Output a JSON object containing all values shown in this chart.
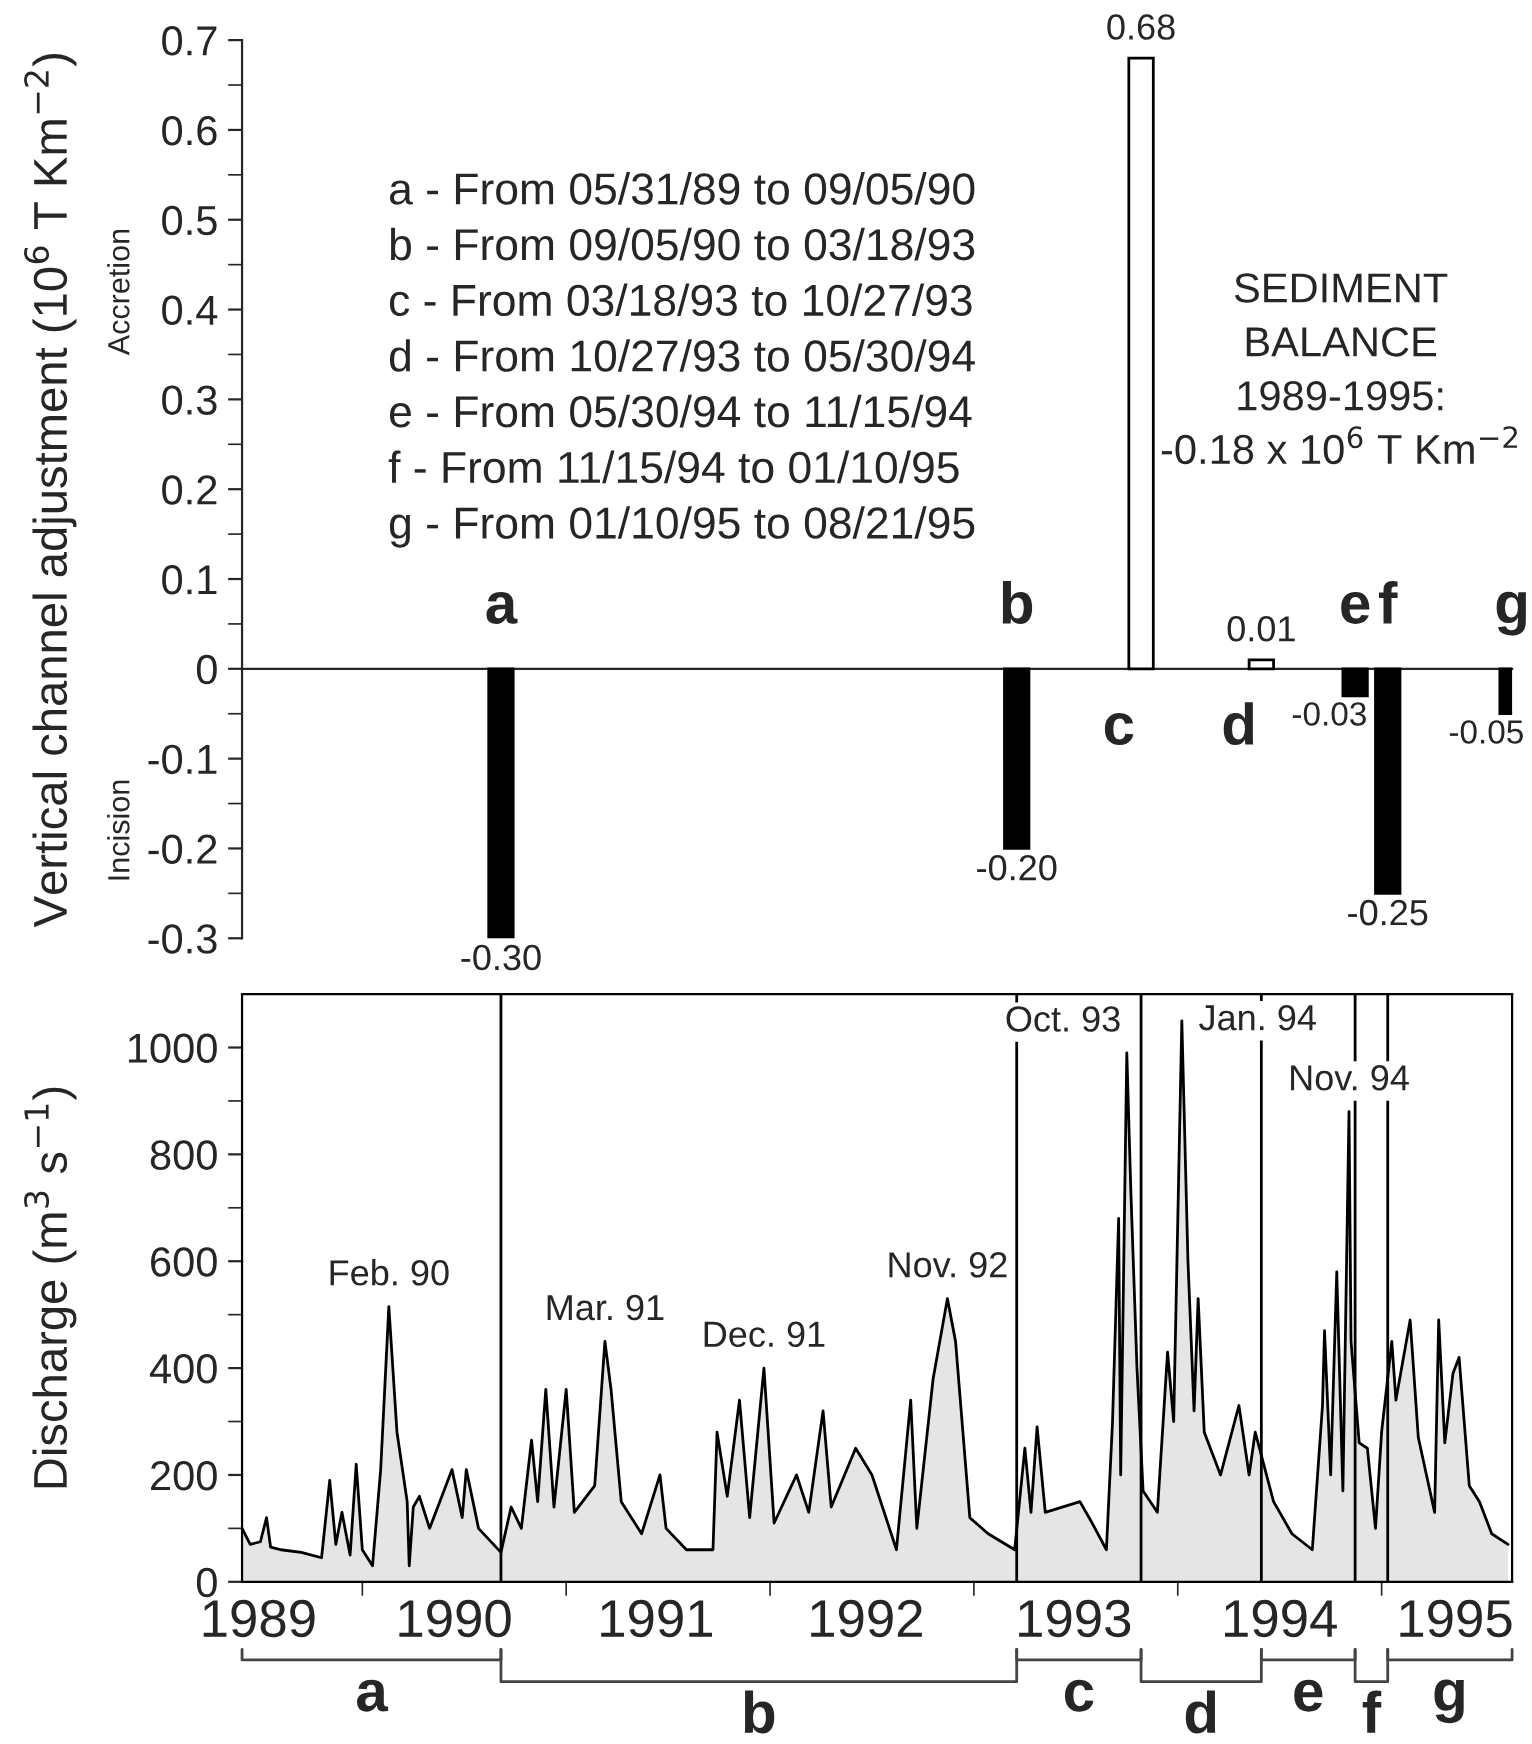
{
  "chart_data": [
    {
      "type": "bar",
      "ylabel": "Vertical channel adjustment (10$^{6}$ T Km$^{−2}$)",
      "x": [
        1990.68,
        1993.21,
        1993.82,
        1994.41,
        1994.87,
        1995.03,
        1995.64
      ],
      "values": [
        -0.3,
        -0.2,
        0.68,
        0.01,
        -0.03,
        -0.25,
        -0.05
      ],
      "colors": [
        "#000000",
        "#000000",
        "#ffffff",
        "#ffffff",
        "#000000",
        "#000000",
        "#000000"
      ],
      "value_labels": [
        "-0.30",
        "-0.20",
        "0.68",
        "0.01",
        "-0.03",
        "-0.25",
        "-0.05"
      ],
      "xlim": [
        1989.41,
        1995.64
      ],
      "ylim": [
        -0.3,
        0.7
      ],
      "yticks": [
        0.7,
        {
          "value": 0.65,
          "label": null
        },
        0.6,
        {
          "value": 0.55,
          "label": null
        },
        0.5,
        {
          "value": 0.45,
          "label": null
        },
        0.4,
        {
          "value": 0.35,
          "label": null
        },
        0.3,
        {
          "value": 0.25,
          "label": null
        },
        0.2,
        {
          "value": 0.15,
          "label": null
        },
        0.1,
        {
          "value": 0.05,
          "label": null
        },
        0,
        {
          "value": -0.05,
          "label": null
        },
        -0.1,
        {
          "value": -0.15,
          "label": null
        },
        -0.2,
        {
          "value": -0.25,
          "label": null
        },
        -0.3
      ],
      "tick_labels": "y",
      "legend": false,
      "annotations": [
        {
          "text": "a",
          "x": 1990.68,
          "y": 0
        },
        {
          "text": "b",
          "x": 1993.21,
          "y": 0
        },
        {
          "text": "c",
          "x": 1993.82,
          "y": 0
        },
        {
          "text": "d",
          "x": 1994.41,
          "y": 0
        },
        {
          "text": "e",
          "x": 1994.87,
          "y": 0
        },
        {
          "text": "f",
          "x": 1995.03,
          "y": 0
        },
        {
          "text": "g",
          "x": 1995.64,
          "y": 0
        },
        "a - From 05/31/89 to 09/05/90",
        "b - From 09/05/90 to 03/18/93",
        "c - From 03/18/93 to 10/27/93",
        "d - From 10/27/93 to 05/30/94",
        "e - From 05/30/94 to 11/15/94",
        "f - From 11/15/94 to 01/10/95",
        "g - From 01/10/95 to 08/21/95",
        "Accretion",
        "Incision",
        "SEDIMENT\nBALANCE\n1989-1995:\n-0.18 x 10$^{6}$ T Km$^{−2}$"
      ]
    },
    {
      "type": "area",
      "ylabel": "Discharge (m$^{3}$ s$^{−1}$)",
      "series": [
        {
          "color": "#e5e5e5",
          "x": [
            1989.41,
            1989.45,
            1989.5,
            1989.53,
            1989.55,
            1989.6,
            1989.7,
            1989.8,
            1989.84,
            1989.87,
            1989.9,
            1989.94,
            1989.97,
            1990.0,
            1990.05,
            1990.09,
            1990.13,
            1990.17,
            1990.22,
            1990.23,
            1990.25,
            1990.28,
            1990.33,
            1990.4,
            1990.44,
            1990.49,
            1990.51,
            1990.57,
            1990.68,
            1990.73,
            1990.78,
            1990.83,
            1990.86,
            1990.9,
            1990.94,
            1991.0,
            1991.04,
            1991.14,
            1991.19,
            1991.22,
            1991.27,
            1991.37,
            1991.46,
            1991.49,
            1991.59,
            1991.72,
            1991.74,
            1991.79,
            1991.85,
            1991.9,
            1991.97,
            1992.02,
            1992.13,
            1992.19,
            1992.26,
            1992.3,
            1992.42,
            1992.5,
            1992.62,
            1992.69,
            1992.72,
            1992.8,
            1992.87,
            1992.91,
            1992.98,
            1993.07,
            1993.2,
            1993.25,
            1993.28,
            1993.31,
            1993.35,
            1993.52,
            1993.58,
            1993.65,
            1993.68,
            1993.71,
            1993.72,
            1993.75,
            1993.77,
            1993.8,
            1993.83,
            1993.9,
            1993.95,
            1993.98,
            1994.02,
            1994.05,
            1994.08,
            1994.1,
            1994.13,
            1994.21,
            1994.3,
            1994.35,
            1994.38,
            1994.47,
            1994.56,
            1994.66,
            1994.71,
            1994.72,
            1994.75,
            1994.78,
            1994.81,
            1994.84,
            1994.85,
            1994.89,
            1994.93,
            1994.97,
            1995.0,
            1995.05,
            1995.07,
            1995.14,
            1995.18,
            1995.26,
            1995.28,
            1995.31,
            1995.35,
            1995.38,
            1995.43,
            1995.48,
            1995.54,
            1995.62
          ],
          "values": [
            100,
            70,
            75,
            120,
            65,
            60,
            55,
            45,
            190,
            70,
            130,
            50,
            220,
            60,
            30,
            210,
            515,
            280,
            150,
            30,
            140,
            160,
            100,
            170,
            210,
            120,
            210,
            100,
            55,
            140,
            100,
            265,
            150,
            360,
            140,
            360,
            130,
            180,
            450,
            360,
            150,
            90,
            200,
            100,
            60,
            60,
            280,
            160,
            340,
            120,
            400,
            110,
            200,
            130,
            320,
            140,
            250,
            200,
            60,
            340,
            100,
            380,
            530,
            450,
            120,
            90,
            60,
            250,
            130,
            290,
            130,
            150,
            110,
            60,
            300,
            680,
            200,
            990,
            730,
            400,
            170,
            130,
            430,
            300,
            1050,
            600,
            320,
            530,
            280,
            200,
            330,
            200,
            280,
            150,
            90,
            60,
            330,
            470,
            200,
            580,
            170,
            880,
            450,
            260,
            250,
            100,
            280,
            450,
            340,
            490,
            270,
            130,
            490,
            260,
            390,
            420,
            180,
            150,
            90,
            70
          ]
        }
      ],
      "xlim": [
        1989.41,
        1995.64
      ],
      "ylim": [
        0,
        1100
      ],
      "xticks": [
        {
          "value": 1989.49,
          "label": "1989"
        },
        {
          "value": 1990,
          "label": null
        },
        {
          "value": 1990.45,
          "label": "1990"
        },
        {
          "value": 1991,
          "label": null
        },
        {
          "value": 1991.44,
          "label": "1991"
        },
        {
          "value": 1992,
          "label": null
        },
        {
          "value": 1992.47,
          "label": "1992"
        },
        {
          "value": 1993,
          "label": null
        },
        {
          "value": 1993.49,
          "label": "1993"
        },
        {
          "value": 1994,
          "label": null
        },
        {
          "value": 1994.5,
          "label": "1994"
        },
        {
          "value": 1995,
          "label": null
        },
        {
          "value": 1995.36,
          "label": "1995"
        }
      ],
      "yticks": [
        0,
        {
          "value": 100,
          "label": null
        },
        200,
        {
          "value": 300,
          "label": null
        },
        400,
        {
          "value": 500,
          "label": null
        },
        600,
        {
          "value": 700,
          "label": null
        },
        800,
        {
          "value": 900,
          "label": null
        },
        1000
      ],
      "ref_lines": [
        {
          "axis": "x",
          "value": 1990.68,
          "label": null
        },
        {
          "axis": "x",
          "value": 1993.21,
          "label": null
        },
        {
          "axis": "x",
          "value": 1993.82,
          "label": null
        },
        {
          "axis": "x",
          "value": 1994.41,
          "label": null
        },
        {
          "axis": "x",
          "value": 1994.87,
          "label": null
        },
        {
          "axis": "x",
          "value": 1995.03,
          "label": null
        }
      ],
      "grid": false,
      "legend": false,
      "annotations": [
        {
          "text": "Feb. 90",
          "x": 1990.13,
          "y": 515
        },
        {
          "text": "Mar. 91",
          "x": 1991.19,
          "y": 450
        },
        {
          "text": "Dec. 91",
          "x": 1991.97,
          "y": 400
        },
        {
          "text": "Nov. 92",
          "x": 1992.87,
          "y": 530
        },
        {
          "text": "Oct. 93",
          "x": 1993.75,
          "y": 990
        },
        {
          "text": "Jan. 94",
          "x": 1994.02,
          "y": 1050
        },
        {
          "text": "Nov. 94",
          "x": 1994.84,
          "y": 880
        },
        "a",
        "b",
        "c",
        "d",
        "e",
        "f",
        "g"
      ]
    }
  ]
}
